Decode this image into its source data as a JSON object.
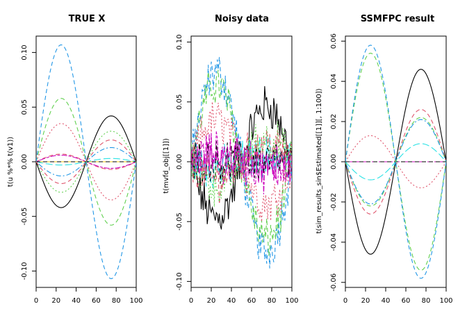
{
  "chart_data": [
    {
      "type": "line",
      "title": "TRUE X",
      "xlabel": "",
      "ylabel": "t(u %*% t(v1))",
      "xlim": [
        0,
        100
      ],
      "ylim": [
        -0.115,
        0.115
      ],
      "xticks": [
        "0",
        "20",
        "40",
        "60",
        "80",
        "100"
      ],
      "yticks": [
        "-0.10",
        "-0.05",
        "0.00",
        "0.05",
        "0.10"
      ],
      "grid": false,
      "legend": "none",
      "shape": "two-lobe sine; value(t) = amp * sin(2*pi*t/100)",
      "series": [
        {
          "color": "#000000",
          "dash": "solid",
          "amplitude": -0.042
        },
        {
          "color": "#DF536B",
          "dash": "dashed",
          "amplitude": 0.007
        },
        {
          "color": "#61D04F",
          "dash": "dotted",
          "amplitude": -0.028
        },
        {
          "color": "#2297E6",
          "dash": "dotdash",
          "amplitude": -0.013
        },
        {
          "color": "#28E2E5",
          "dash": "longdash",
          "amplitude": -0.003
        },
        {
          "color": "#CD0BBC",
          "dash": "twodash",
          "amplitude": 0.006
        },
        {
          "color": "#F5C710",
          "dash": "solid",
          "amplitude": 0.0
        },
        {
          "color": "#000000",
          "dash": "dashed",
          "amplitude": 0.0
        },
        {
          "color": "#DF536B",
          "dash": "dotted",
          "amplitude": 0.035
        },
        {
          "color": "#61D04F",
          "dash": "dashed",
          "amplitude": 0.058
        },
        {
          "color": "#2297E6",
          "dash": "dashed",
          "amplitude": 0.107
        },
        {
          "color": "#DF536B",
          "dash": "dashed",
          "amplitude": -0.02
        }
      ]
    },
    {
      "type": "line",
      "title": "Noisy data",
      "xlabel": "",
      "ylabel": "t(mvfd_obj[[1]])",
      "xlim": [
        0,
        100
      ],
      "ylim": [
        -0.105,
        0.105
      ],
      "xticks": [
        "0",
        "20",
        "40",
        "60",
        "80",
        "100"
      ],
      "yticks": [
        "-0.10",
        "-0.05",
        "0.00",
        "0.05",
        "0.10"
      ],
      "grid": false,
      "legend": "none",
      "shape": "noisy versions of the TRUE X curves",
      "series": [
        {
          "color": "#000000",
          "dash": "solid",
          "amplitude": -0.047
        },
        {
          "color": "#2297E6",
          "dash": "dashed",
          "amplitude": 0.075
        },
        {
          "color": "#61D04F",
          "dash": "dashed",
          "amplitude": 0.065
        },
        {
          "color": "#DF536B",
          "dash": "dotted",
          "amplitude": 0.035
        },
        {
          "color": "#CD0BBC",
          "dash": "solid",
          "amplitude": 0.0
        },
        {
          "color": "#28E2E5",
          "dash": "longdash",
          "amplitude": -0.005
        },
        {
          "color": "#000000",
          "dash": "dashed",
          "amplitude": 0.0
        },
        {
          "color": "#DF536B",
          "dash": "dashed",
          "amplitude": -0.015
        },
        {
          "color": "#61D04F",
          "dash": "dotted",
          "amplitude": -0.02
        },
        {
          "color": "#CD0BBC",
          "dash": "twodash",
          "amplitude": 0.008
        }
      ]
    },
    {
      "type": "line",
      "title": "SSMFPC result",
      "xlabel": "",
      "ylabel": "t(sim_results_sin$Estimated[[1]][, 1:100])",
      "xlim": [
        0,
        100
      ],
      "ylim": [
        -0.0625,
        0.0625
      ],
      "xticks": [
        "0",
        "20",
        "40",
        "60",
        "80",
        "100"
      ],
      "yticks": [
        "-0.06",
        "-0.04",
        "-0.02",
        "0.00",
        "0.02",
        "0.04",
        "0.06"
      ],
      "grid": false,
      "legend": "none",
      "shape": "two-lobe sine; value(t) = amp * sin(2*pi*t/100)",
      "series": [
        {
          "color": "#000000",
          "dash": "solid",
          "amplitude": -0.046
        },
        {
          "color": "#DF536B",
          "dash": "dashed",
          "amplitude": -0.026
        },
        {
          "color": "#61D04F",
          "dash": "dashed",
          "amplitude": -0.022
        },
        {
          "color": "#2297E6",
          "dash": "dotdash",
          "amplitude": -0.021
        },
        {
          "color": "#28E2E5",
          "dash": "longdash",
          "amplitude": -0.009
        },
        {
          "color": "#CD0BBC",
          "dash": "twodash",
          "amplitude": 0.0
        },
        {
          "color": "#000000",
          "dash": "dashed",
          "amplitude": 0.0
        },
        {
          "color": "#DF536B",
          "dash": "dotted",
          "amplitude": 0.013
        },
        {
          "color": "#61D04F",
          "dash": "dashed",
          "amplitude": 0.054
        },
        {
          "color": "#2297E6",
          "dash": "dashed",
          "amplitude": 0.058
        }
      ]
    }
  ]
}
